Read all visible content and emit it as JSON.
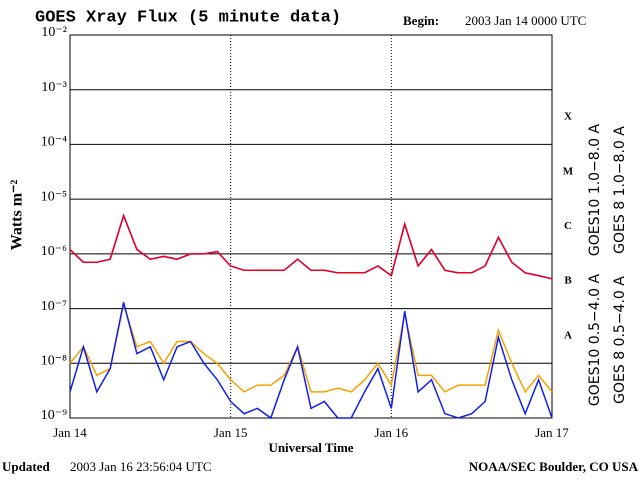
{
  "chart_data": {
    "type": "line",
    "title": "GOES Xray Flux (5 minute data)",
    "begin_label": "Begin:",
    "begin_value": "2003 Jan 14 0000 UTC",
    "updated_label": "Updated",
    "updated_value": "2003 Jan 16 23:56:04 UTC",
    "credit": "NOAA/SEC Boulder, CO USA",
    "x_label": "Universal Time",
    "y_label": "Watts m⁻²",
    "log_y": true,
    "grid": true,
    "xlim": [
      0,
      72
    ],
    "xticks": [
      {
        "value": 0,
        "label": "Jan 14"
      },
      {
        "value": 24,
        "label": "Jan 15"
      },
      {
        "value": 48,
        "label": "Jan 16"
      },
      {
        "value": 72,
        "label": "Jan 17"
      }
    ],
    "ylim": [
      1e-09,
      0.01
    ],
    "yticks": [
      {
        "value": 1e-09,
        "label": "10⁻⁹"
      },
      {
        "value": 1e-08,
        "label": "10⁻⁸"
      },
      {
        "value": 1e-07,
        "label": "10⁻⁷"
      },
      {
        "value": 1e-06,
        "label": "10⁻⁶"
      },
      {
        "value": 1e-05,
        "label": "10⁻⁵"
      },
      {
        "value": 0.0001,
        "label": "10⁻⁴"
      },
      {
        "value": 0.001,
        "label": "10⁻³"
      },
      {
        "value": 0.01,
        "label": "10⁻²"
      }
    ],
    "flare_classes": [
      "A",
      "B",
      "C",
      "M",
      "X"
    ],
    "x": [
      0,
      2,
      4,
      6,
      8,
      10,
      12,
      14,
      16,
      18,
      20,
      22,
      24,
      26,
      28,
      30,
      32,
      34,
      36,
      38,
      40,
      42,
      44,
      46,
      48,
      50,
      52,
      54,
      56,
      58,
      60,
      62,
      64,
      66,
      68,
      70,
      72
    ],
    "series": [
      {
        "name": "GOES10 1.0−8.0 A",
        "color": "#8a2be2",
        "values": [
          1.2e-06,
          7e-07,
          7e-07,
          8e-07,
          5e-06,
          1.2e-06,
          8e-07,
          9e-07,
          8e-07,
          1e-06,
          1e-06,
          1.1e-06,
          6e-07,
          5e-07,
          5e-07,
          5e-07,
          5e-07,
          8e-07,
          5e-07,
          5e-07,
          4.5e-07,
          4.5e-07,
          4.5e-07,
          6e-07,
          4e-07,
          3.5e-06,
          6e-07,
          1.2e-06,
          5e-07,
          4.5e-07,
          4.5e-07,
          6e-07,
          2e-06,
          7e-07,
          4.5e-07,
          4e-07,
          3.5e-07
        ]
      },
      {
        "name": "GOES 8 1.0−8.0 A",
        "color": "#e8001c",
        "values": [
          1.2e-06,
          7e-07,
          7e-07,
          8e-07,
          5e-06,
          1.2e-06,
          8e-07,
          9e-07,
          8e-07,
          1e-06,
          1e-06,
          1.1e-06,
          6e-07,
          5e-07,
          5e-07,
          5e-07,
          5e-07,
          8e-07,
          5e-07,
          5e-07,
          4.5e-07,
          4.5e-07,
          4.5e-07,
          6e-07,
          4e-07,
          3.5e-06,
          6e-07,
          1.2e-06,
          5e-07,
          4.5e-07,
          4.5e-07,
          6e-07,
          2e-06,
          7e-07,
          4.5e-07,
          4e-07,
          3.5e-07
        ]
      },
      {
        "name": "GOES10 0.5−4.0 A",
        "color": "#f5a000",
        "values": [
          1e-08,
          2e-08,
          6e-09,
          8e-09,
          1.2e-07,
          2e-08,
          2.5e-08,
          1e-08,
          2.5e-08,
          2.5e-08,
          1.5e-08,
          1e-08,
          5e-09,
          3e-09,
          4e-09,
          4e-09,
          6e-09,
          2e-08,
          3e-09,
          3e-09,
          3.5e-09,
          3e-09,
          5e-09,
          1e-08,
          4e-09,
          8e-08,
          6e-09,
          6e-09,
          3e-09,
          4e-09,
          4e-09,
          4e-09,
          4e-08,
          1e-08,
          3e-09,
          6e-09,
          3e-09
        ]
      },
      {
        "name": "GOES 8 0.5−4.0 A",
        "color": "#1020e8",
        "values": [
          3e-09,
          2e-08,
          3e-09,
          8e-09,
          1.3e-07,
          1.5e-08,
          2e-08,
          5e-09,
          2e-08,
          2.5e-08,
          1e-08,
          5e-09,
          2e-09,
          1.2e-09,
          1.5e-09,
          1e-09,
          5e-09,
          2e-08,
          1.5e-09,
          2e-09,
          1e-09,
          1e-09,
          3e-09,
          8e-09,
          1.5e-09,
          9e-08,
          3e-09,
          5e-09,
          1.2e-09,
          1e-09,
          1.2e-09,
          2e-09,
          3e-08,
          5e-09,
          1.2e-09,
          5e-09,
          1e-09
        ]
      }
    ]
  }
}
